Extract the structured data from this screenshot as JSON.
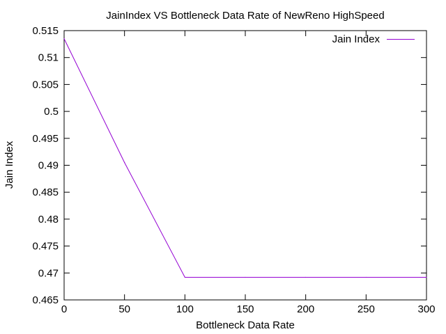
{
  "chart_data": {
    "type": "line",
    "title": "JainIndex VS Bottleneck Data Rate of NewReno  HighSpeed",
    "xlabel": "Bottleneck Data Rate",
    "ylabel": "Jain Index",
    "xlim": [
      0,
      300
    ],
    "ylim": [
      0.465,
      0.515
    ],
    "xticks": [
      "0",
      "50",
      "100",
      "150",
      "200",
      "250",
      "300"
    ],
    "yticks": [
      "0.465",
      "0.47",
      "0.475",
      "0.48",
      "0.485",
      "0.49",
      "0.495",
      "0.5",
      "0.505",
      "0.51",
      "0.515"
    ],
    "grid": false,
    "legend_position": "top-right",
    "series": [
      {
        "name": "Jain Index",
        "color": "#9400d3",
        "x": [
          0,
          50,
          100,
          150,
          200,
          250,
          300
        ],
        "y": [
          0.5135,
          0.4905,
          0.4692,
          0.4692,
          0.4692,
          0.4692,
          0.4692
        ]
      }
    ]
  }
}
